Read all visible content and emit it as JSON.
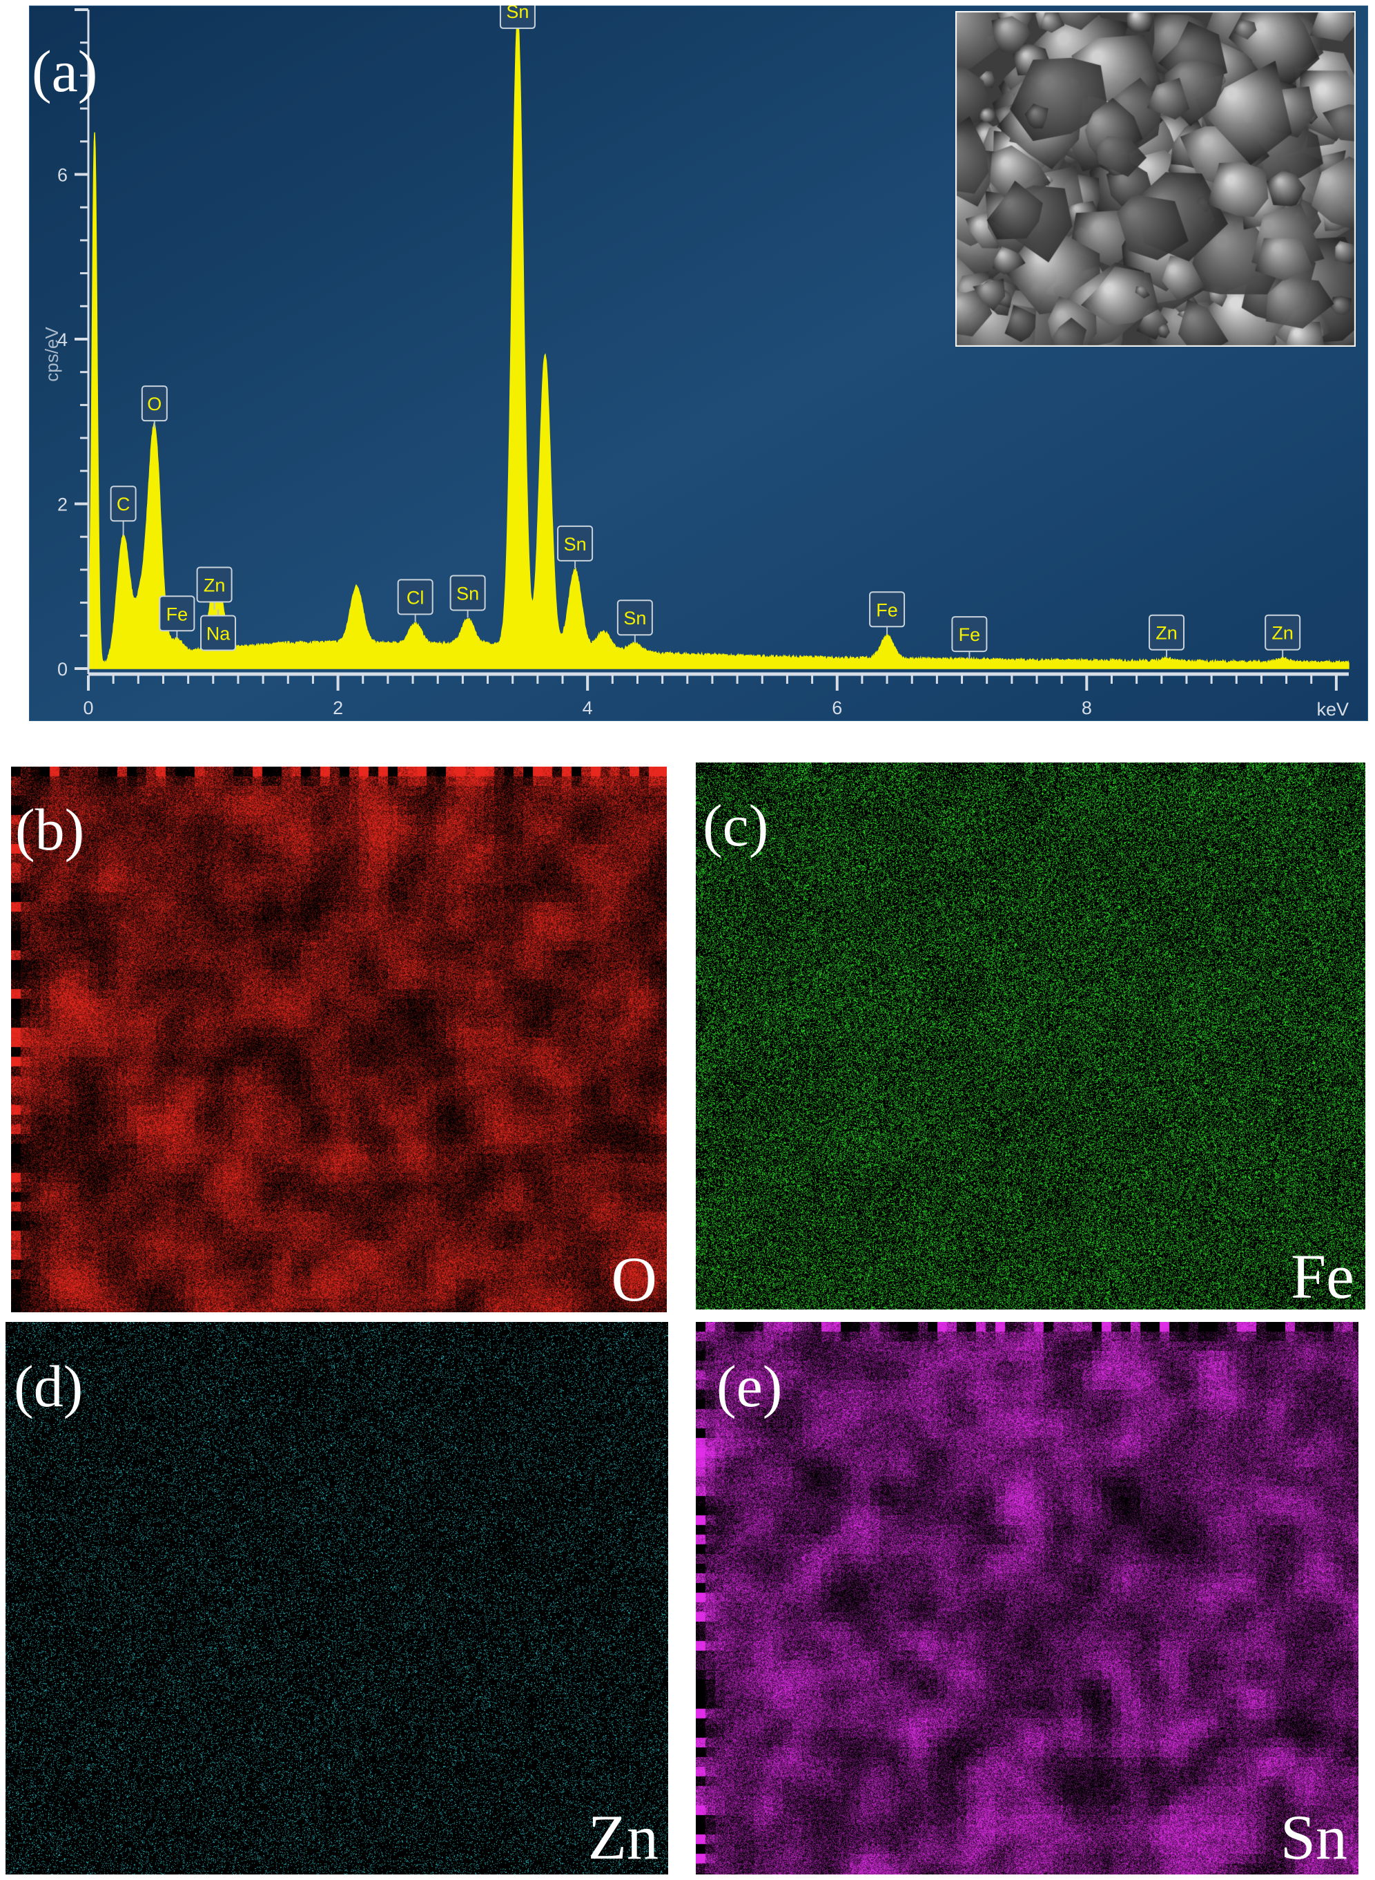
{
  "panels": {
    "a": "(a)",
    "b": "(b)",
    "c": "(c)",
    "d": "(d)",
    "e": "(e)"
  },
  "maps": [
    {
      "id": "b",
      "element": "O",
      "color": "#e8281e"
    },
    {
      "id": "c",
      "element": "Fe",
      "color": "#2ee82a"
    },
    {
      "id": "d",
      "element": "Zn",
      "color": "#2fd0d8"
    },
    {
      "id": "e",
      "element": "Sn",
      "color": "#e02ee8"
    }
  ],
  "colors": {
    "spectrum_fill": "#f4f000",
    "plot_bg_top": "#1f4d78",
    "plot_bg_bottom": "#0e2f52",
    "axis": "#d6dde6",
    "label_text": "#f4f000"
  },
  "chart_data": {
    "type": "area",
    "xlabel": "keV",
    "ylabel": "cps/eV",
    "xlim": [
      0,
      10.1
    ],
    "ylim": [
      0,
      8
    ],
    "x_ticks": [
      "0",
      "2",
      "4",
      "6",
      "8"
    ],
    "y_ticks": [
      "0",
      "2",
      "4",
      "6"
    ],
    "grid": false,
    "baseline": [
      [
        0.0,
        0.0
      ],
      [
        0.3,
        0.12
      ],
      [
        0.8,
        0.2
      ],
      [
        1.2,
        0.26
      ],
      [
        1.6,
        0.31
      ],
      [
        2.0,
        0.32
      ],
      [
        2.6,
        0.3
      ],
      [
        3.2,
        0.3
      ],
      [
        4.0,
        0.26
      ],
      [
        4.6,
        0.18
      ],
      [
        5.5,
        0.14
      ],
      [
        6.5,
        0.12
      ],
      [
        7.5,
        0.1
      ],
      [
        8.5,
        0.09
      ],
      [
        10.1,
        0.07
      ]
    ],
    "peaks": [
      {
        "label": "",
        "x": 0.05,
        "y": 6.5
      },
      {
        "label": "C",
        "x": 0.28,
        "y": 1.6
      },
      {
        "label": "",
        "x": 0.42,
        "y": 0.8
      },
      {
        "label": "O",
        "x": 0.53,
        "y": 2.9
      },
      {
        "label": "Fe",
        "x": 0.71,
        "y": 0.35
      },
      {
        "label": "Zn",
        "x": 1.01,
        "y": 0.7
      },
      {
        "label": "Na",
        "x": 1.04,
        "y": 0.7
      },
      {
        "label": "",
        "x": 2.15,
        "y": 1.0
      },
      {
        "label": "Cl",
        "x": 2.62,
        "y": 0.55
      },
      {
        "label": "Sn",
        "x": 3.04,
        "y": 0.6
      },
      {
        "label": "Sn",
        "x": 3.44,
        "y": 7.9
      },
      {
        "label": "",
        "x": 3.66,
        "y": 3.8
      },
      {
        "label": "Sn",
        "x": 3.9,
        "y": 1.2
      },
      {
        "label": "",
        "x": 4.13,
        "y": 0.45
      },
      {
        "label": "Sn",
        "x": 4.38,
        "y": 0.3
      },
      {
        "label": "Fe",
        "x": 6.4,
        "y": 0.4
      },
      {
        "label": "Fe",
        "x": 7.06,
        "y": 0.1
      },
      {
        "label": "Zn",
        "x": 8.64,
        "y": 0.12
      },
      {
        "label": "Zn",
        "x": 9.57,
        "y": 0.12
      }
    ]
  }
}
